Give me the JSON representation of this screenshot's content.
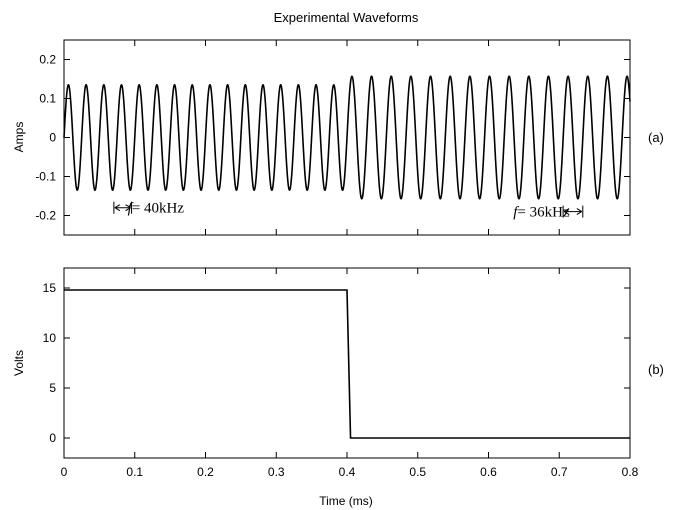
{
  "title": "Experimental Waveforms",
  "chart_data": [
    {
      "type": "line",
      "panel_label": "(a)",
      "ylabel": "Amps",
      "xlim": [
        0,
        0.8
      ],
      "ylim": [
        -0.25,
        0.25
      ],
      "yticks": [
        -0.2,
        -0.1,
        0,
        0.1,
        0.2
      ],
      "ytick_labels": [
        "-0.2",
        "-0.1",
        "0",
        "0.1",
        "0.2"
      ],
      "grid": false,
      "series": [
        {
          "segments": [
            {
              "x_start": 0,
              "x_end": 0.405,
              "frequency_khz": 40,
              "amplitude": 0.135
            },
            {
              "x_start": 0.405,
              "x_end": 0.8,
              "frequency_khz": 36,
              "amplitude": 0.157
            }
          ]
        }
      ],
      "annotations": [
        {
          "variable": "f",
          "text": "= 40kHz",
          "x": 0.09,
          "y": -0.18
        },
        {
          "variable": "f",
          "text": "= 36kHz",
          "x": 0.635,
          "y": -0.19
        }
      ]
    },
    {
      "type": "line",
      "panel_label": "(b)",
      "xlabel": "Time (ms)",
      "ylabel": "Volts",
      "xlim": [
        0,
        0.8
      ],
      "ylim": [
        -2,
        17
      ],
      "xticks": [
        0,
        0.1,
        0.2,
        0.3,
        0.4,
        0.5,
        0.6,
        0.7,
        0.8
      ],
      "xtick_labels": [
        "0",
        "0.1",
        "0.2",
        "0.3",
        "0.4",
        "0.5",
        "0.6",
        "0.7",
        "0.8"
      ],
      "yticks": [
        0,
        5,
        10,
        15
      ],
      "ytick_labels": [
        "0",
        "5",
        "10",
        "15"
      ],
      "grid": false,
      "series": [
        {
          "x": [
            0,
            0.4,
            0.405,
            0.8
          ],
          "y": [
            14.8,
            14.8,
            0,
            0
          ]
        }
      ]
    }
  ]
}
